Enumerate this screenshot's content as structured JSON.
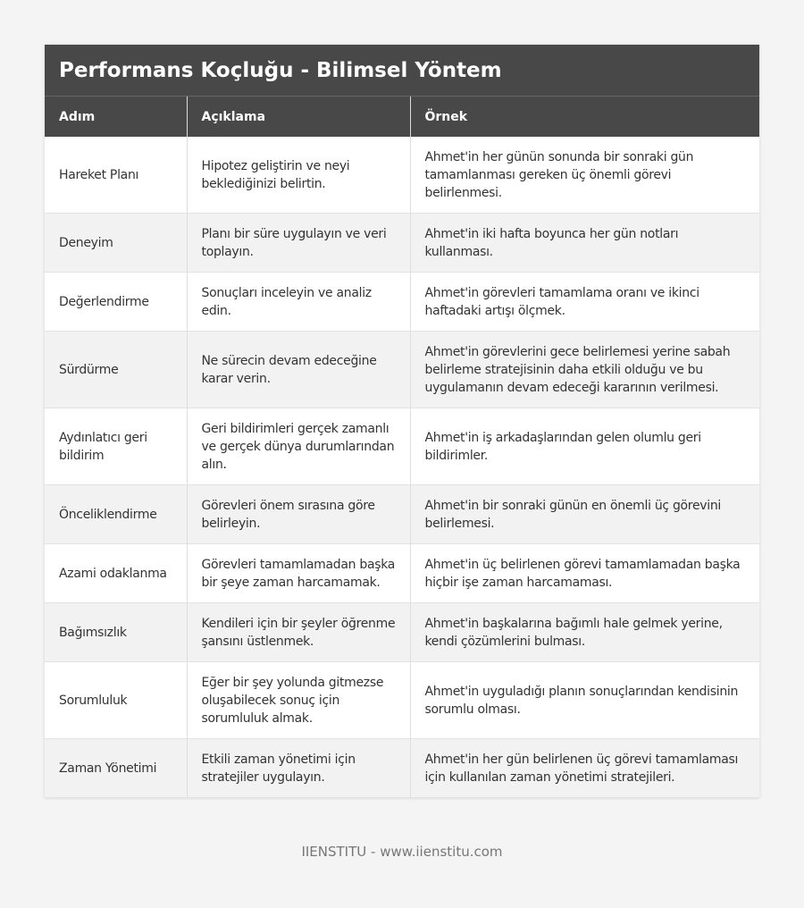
{
  "title": "Performans Koçluğu - Bilimsel Yöntem",
  "columns": [
    "Adım",
    "Açıklama",
    "Örnek"
  ],
  "rows": [
    [
      "Hareket Planı",
      "Hipotez geliştirin ve neyi beklediğinizi belirtin.",
      "Ahmet'in her günün sonunda bir sonraki gün tamamlanması gereken üç önemli görevi belirlenmesi."
    ],
    [
      "Deneyim",
      "Planı bir süre uygulayın ve veri toplayın.",
      "Ahmet'in iki hafta boyunca her gün notları kullanması."
    ],
    [
      "Değerlendirme",
      "Sonuçları inceleyin ve analiz edin.",
      "Ahmet'in görevleri tamamlama oranı ve ikinci haftadaki artışı ölçmek."
    ],
    [
      "Sürdürme",
      "Ne sürecin devam edeceğine karar verin.",
      "Ahmet'in görevlerini gece belirlemesi yerine sabah belirleme stratejisinin daha etkili olduğu ve bu uygulamanın devam edeceği kararının verilmesi."
    ],
    [
      "Aydınlatıcı geri bildirim",
      "Geri bildirimleri gerçek zamanlı ve gerçek dünya durumlarından alın.",
      "Ahmet'in iş arkadaşlarından gelen olumlu geri bildirimler."
    ],
    [
      "Önceliklendirme",
      "Görevleri önem sırasına göre belirleyin.",
      "Ahmet'in bir sonraki günün en önemli üç görevini belirlemesi."
    ],
    [
      "Azami odaklanma",
      "Görevleri tamamlamadan başka bir şeye zaman harcamamak.",
      "Ahmet'in üç belirlenen görevi tamamlamadan başka hiçbir işe zaman harcamaması."
    ],
    [
      "Bağımsızlık",
      "Kendileri için bir şeyler öğrenme şansını üstlenmek.",
      "Ahmet'in başkalarına bağımlı hale gelmek yerine, kendi çözümlerini bulması."
    ],
    [
      "Sorumluluk",
      "Eğer bir şey yolunda gitmezse oluşabilecek sonuç için sorumluluk almak.",
      "Ahmet'in uyguladığı planın sonuçlarından kendisinin sorumlu olması."
    ],
    [
      "Zaman Yönetimi",
      "Etkili zaman yönetimi için stratejiler uygulayın.",
      "Ahmet'in her gün belirlenen üç görevi tamamlaması için kullanılan zaman yönetimi stratejileri."
    ]
  ],
  "footer": "IIENSTITU - www.iienstitu.com"
}
